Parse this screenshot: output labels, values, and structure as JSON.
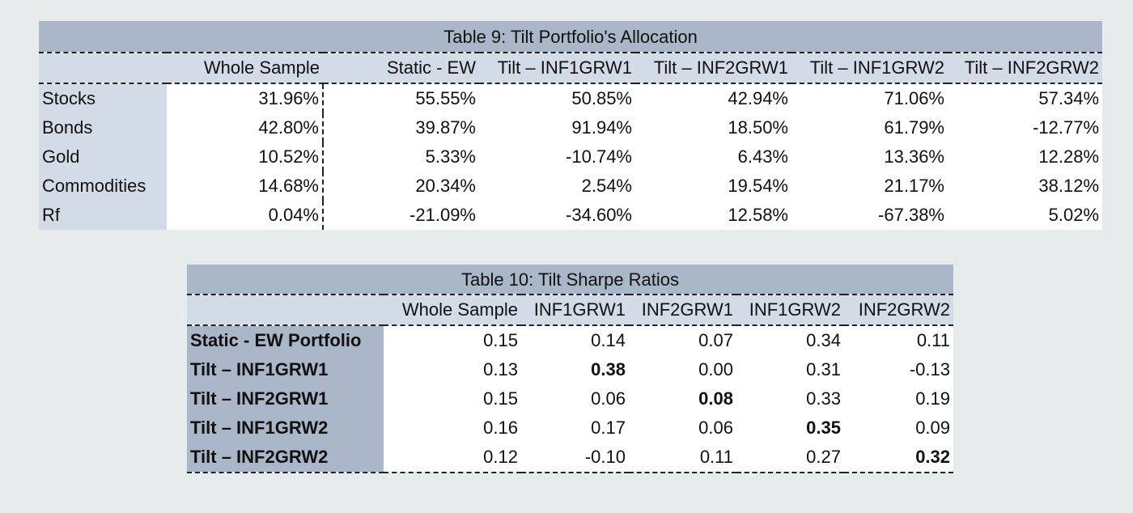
{
  "table9": {
    "title": "Table 9: Tilt Portfolio's Allocation",
    "columns": [
      "",
      "Whole Sample",
      "Static - EW",
      "Tilt – INF1GRW1",
      "Tilt – INF2GRW1",
      "Tilt – INF1GRW2",
      "Tilt – INF2GRW2"
    ],
    "rows": [
      {
        "label": "Stocks",
        "values": [
          "31.96%",
          "55.55%",
          "50.85%",
          "42.94%",
          "71.06%",
          "57.34%"
        ]
      },
      {
        "label": "Bonds",
        "values": [
          "42.80%",
          "39.87%",
          "91.94%",
          "18.50%",
          "61.79%",
          "-12.77%"
        ]
      },
      {
        "label": "Gold",
        "values": [
          "10.52%",
          "5.33%",
          "-10.74%",
          "6.43%",
          "13.36%",
          "12.28%"
        ]
      },
      {
        "label": "Commodities",
        "values": [
          "14.68%",
          "20.34%",
          "2.54%",
          "19.54%",
          "21.17%",
          "38.12%"
        ]
      },
      {
        "label": "Rf",
        "values": [
          "0.04%",
          "-21.09%",
          "-34.60%",
          "12.58%",
          "-67.38%",
          "5.02%"
        ]
      }
    ]
  },
  "table10": {
    "title": "Table 10: Tilt Sharpe Ratios",
    "columns": [
      "",
      "Whole Sample",
      "INF1GRW1",
      "INF2GRW1",
      "INF1GRW2",
      "INF2GRW2"
    ],
    "rows": [
      {
        "label": "Static - EW Portfolio",
        "values": [
          "0.15",
          "0.14",
          "0.07",
          "0.34",
          "0.11"
        ]
      },
      {
        "label": "Tilt – INF1GRW1",
        "values": [
          "0.13",
          "0.38",
          "0.00",
          "0.31",
          "-0.13"
        ]
      },
      {
        "label": "Tilt – INF2GRW1",
        "values": [
          "0.15",
          "0.06",
          "0.08",
          "0.33",
          "0.19"
        ]
      },
      {
        "label": "Tilt – INF1GRW2",
        "values": [
          "0.16",
          "0.17",
          "0.06",
          "0.35",
          "0.09"
        ]
      },
      {
        "label": "Tilt – INF2GRW2",
        "values": [
          "0.12",
          "-0.10",
          "0.11",
          "0.27",
          "0.32"
        ]
      }
    ],
    "bold_cells": [
      [
        1,
        2
      ],
      [
        2,
        3
      ],
      [
        3,
        4
      ],
      [
        4,
        5
      ]
    ]
  },
  "colors": {
    "background": "#e6ecec",
    "title_band": "#aab7c9",
    "header_band": "#d3dbe6",
    "cell": "#ffffff"
  }
}
